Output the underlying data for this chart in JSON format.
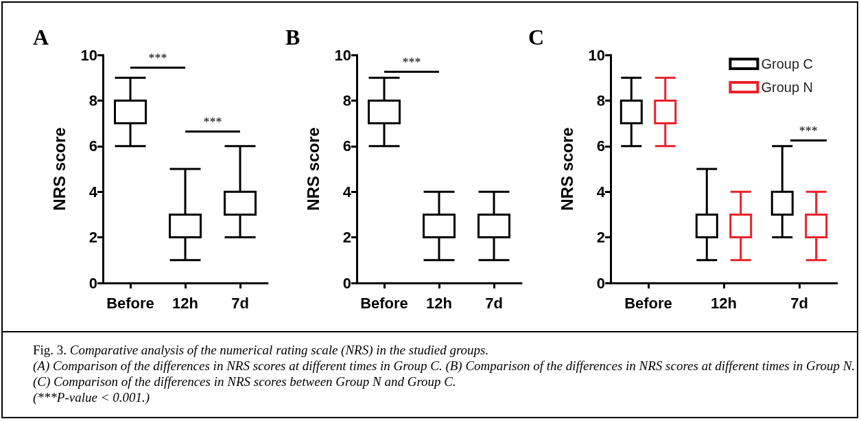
{
  "chart_data": [
    {
      "type": "box",
      "title": "A",
      "ylabel": "NRS score",
      "categories": [
        "Before",
        "12h",
        "7d"
      ],
      "ylim": [
        0,
        10
      ],
      "yticks": [
        0,
        2,
        4,
        6,
        8,
        10
      ],
      "grid": false,
      "annotations": [
        "***",
        "***"
      ],
      "series": [
        {
          "color": "#000000",
          "boxes": [
            {
              "low": 6,
              "q1": 7,
              "median": 8,
              "q3": 8,
              "high": 9
            },
            {
              "low": 1,
              "q1": 2,
              "median": 3,
              "q3": 3,
              "high": 5
            },
            {
              "low": 2,
              "q1": 3,
              "median": 4,
              "q3": 4,
              "high": 6
            }
          ]
        }
      ]
    },
    {
      "type": "box",
      "title": "B",
      "ylabel": "NRS score",
      "categories": [
        "Before",
        "12h",
        "7d"
      ],
      "ylim": [
        0,
        10
      ],
      "yticks": [
        0,
        2,
        4,
        6,
        8,
        10
      ],
      "grid": false,
      "annotations": [
        "***"
      ],
      "series": [
        {
          "color": "#000000",
          "boxes": [
            {
              "low": 6,
              "q1": 7,
              "median": 8,
              "q3": 8,
              "high": 9
            },
            {
              "low": 1,
              "q1": 2,
              "median": 3,
              "q3": 3,
              "high": 4
            },
            {
              "low": 1,
              "q1": 2,
              "median": 2,
              "q3": 3,
              "high": 4
            }
          ]
        }
      ]
    },
    {
      "type": "box",
      "title": "C",
      "ylabel": "NRS score",
      "categories": [
        "Before",
        "12h",
        "7d"
      ],
      "ylim": [
        0,
        10
      ],
      "yticks": [
        0,
        2,
        4,
        6,
        8,
        10
      ],
      "grid": false,
      "legend": "top right",
      "annotations": [
        "***"
      ],
      "series": [
        {
          "name": "Group C",
          "color": "#000000",
          "boxes": [
            {
              "low": 6,
              "q1": 7,
              "median": 8,
              "q3": 8,
              "high": 9
            },
            {
              "low": 1,
              "q1": 2,
              "median": 3,
              "q3": 3,
              "high": 5
            },
            {
              "low": 2,
              "q1": 3,
              "median": 4,
              "q3": 4,
              "high": 6
            }
          ]
        },
        {
          "name": "Group N",
          "color": "#e8202a",
          "boxes": [
            {
              "low": 6,
              "q1": 7,
              "median": 8,
              "q3": 8,
              "high": 9
            },
            {
              "low": 1,
              "q1": 2,
              "median": 3,
              "q3": 3,
              "high": 4
            },
            {
              "low": 1,
              "q1": 2,
              "median": 2,
              "q3": 3,
              "high": 4
            }
          ]
        }
      ]
    },
    {
      "type": "other",
      "annotations": [
        "Fig. 3. Comparative analysis of the numerical rating scale (NRS) in the studied groups.",
        "(A) Comparison of the differences in NRS scores at different times in Group C. (B) Comparison of the differences in NRS scores at different times in Group N. (C) Comparison of the differences in NRS scores between Group N and Group C.",
        "(***P-value < 0.001.)"
      ]
    }
  ]
}
